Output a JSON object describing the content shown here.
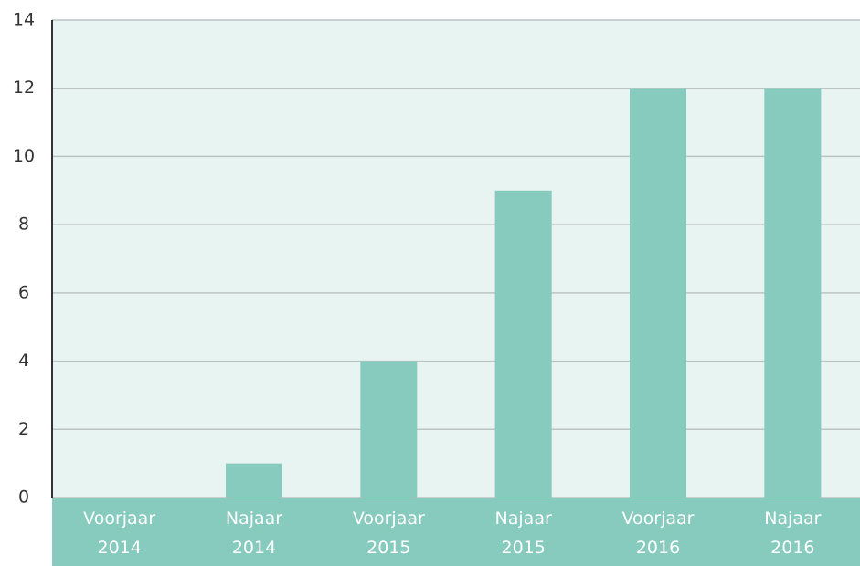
{
  "chart_data": {
    "type": "bar",
    "categories": [
      "Voorjaar\n2014",
      "Najaar\n2014",
      "Voorjaar\n2015",
      "Najaar\n2015",
      "Voorjaar\n2016",
      "Najaar\n2016"
    ],
    "values": [
      0,
      1,
      4,
      9,
      12,
      12
    ],
    "color": "#86cbbd",
    "ylim": [
      0,
      14
    ],
    "yticks": [
      0,
      2,
      4,
      6,
      8,
      10,
      12,
      14
    ],
    "grid": true
  }
}
